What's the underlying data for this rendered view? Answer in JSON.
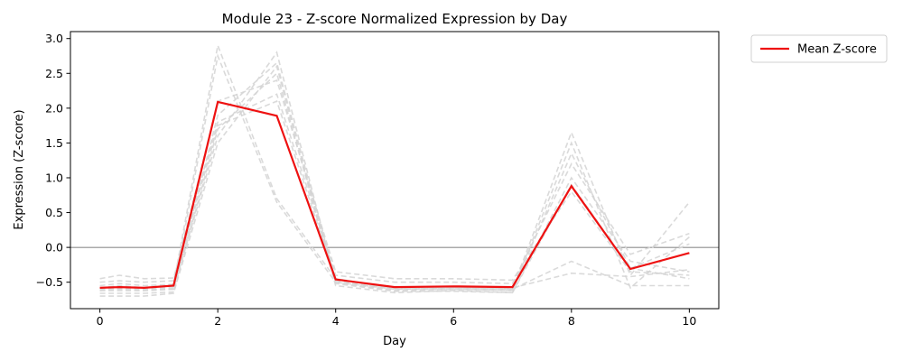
{
  "chart_data": {
    "type": "line",
    "title": "Module 23 - Z-score Normalized Expression by Day",
    "xlabel": "Day",
    "ylabel": "Expression (Z-score)",
    "xlim": [
      -0.5,
      10.5
    ],
    "ylim": [
      -0.88,
      3.1
    ],
    "xticks": [
      0,
      2,
      4,
      6,
      8,
      10
    ],
    "yticks": [
      -0.5,
      0.0,
      0.5,
      1.0,
      1.5,
      2.0,
      2.5,
      3.0
    ],
    "ytick_labels": [
      "−0.5",
      "0.0",
      "0.5",
      "1.0",
      "1.5",
      "2.0",
      "2.5",
      "3.0"
    ],
    "reference_line_y": 0,
    "grid": false,
    "legend_position": "outside-top-right",
    "colors": {
      "mean": "#ee1111",
      "individual": "#d3d3d3",
      "refline": "#555555"
    },
    "individual_series": [
      {
        "x": [
          0,
          0.33,
          0.75,
          1.25,
          2,
          3,
          4,
          5,
          6,
          7,
          8,
          9,
          10
        ],
        "y": [
          -0.55,
          -0.52,
          -0.55,
          -0.53,
          2.9,
          0.7,
          -0.45,
          -0.6,
          -0.58,
          -0.6,
          1.65,
          -0.4,
          0.65
        ]
      },
      {
        "x": [
          0,
          0.33,
          0.75,
          1.25,
          2,
          3,
          4,
          5,
          6,
          7,
          8,
          9,
          10
        ],
        "y": [
          -0.6,
          -0.58,
          -0.6,
          -0.58,
          2.75,
          0.65,
          -0.5,
          -0.62,
          -0.6,
          -0.62,
          1.5,
          -0.58,
          0.15
        ]
      },
      {
        "x": [
          0,
          0.33,
          0.75,
          1.25,
          2,
          3,
          4,
          5,
          6,
          7,
          8,
          9,
          10
        ],
        "y": [
          -0.45,
          -0.4,
          -0.45,
          -0.44,
          1.8,
          2.2,
          -0.4,
          -0.5,
          -0.5,
          -0.52,
          1.2,
          -0.1,
          0.2
        ]
      },
      {
        "x": [
          0,
          0.33,
          0.75,
          1.25,
          2,
          3,
          4,
          5,
          6,
          7,
          8,
          9,
          10
        ],
        "y": [
          -0.62,
          -0.62,
          -0.62,
          -0.6,
          1.6,
          2.8,
          -0.5,
          -0.6,
          -0.6,
          -0.62,
          1.35,
          -0.3,
          0.05
        ]
      },
      {
        "x": [
          0,
          0.33,
          0.75,
          1.25,
          2,
          3,
          4,
          5,
          6,
          7,
          8,
          9,
          10
        ],
        "y": [
          -0.7,
          -0.7,
          -0.7,
          -0.66,
          1.5,
          2.6,
          -0.55,
          -0.65,
          -0.62,
          -0.65,
          1.0,
          -0.2,
          -0.35
        ]
      },
      {
        "x": [
          0,
          0.33,
          0.75,
          1.25,
          2,
          3,
          4,
          5,
          6,
          7,
          8,
          9,
          10
        ],
        "y": [
          -0.66,
          -0.66,
          -0.66,
          -0.64,
          1.7,
          2.5,
          -0.52,
          -0.63,
          -0.63,
          -0.65,
          0.9,
          -0.3,
          -0.45
        ]
      },
      {
        "x": [
          0,
          0.33,
          0.75,
          1.25,
          2,
          3,
          4,
          5,
          6,
          7,
          8,
          9,
          10
        ],
        "y": [
          -0.5,
          -0.48,
          -0.5,
          -0.48,
          2.1,
          2.4,
          -0.35,
          -0.45,
          -0.45,
          -0.47,
          0.8,
          -0.35,
          -0.4
        ]
      },
      {
        "x": [
          0,
          0.33,
          0.75,
          1.25,
          2,
          3,
          4,
          5,
          6,
          7,
          8,
          9,
          10
        ],
        "y": [
          -0.62,
          -0.6,
          -0.62,
          -0.6,
          1.9,
          2.65,
          -0.48,
          -0.6,
          -0.58,
          -0.6,
          -0.2,
          -0.55,
          -0.55
        ]
      },
      {
        "x": [
          0,
          0.33,
          0.75,
          1.25,
          2,
          3,
          4,
          5,
          6,
          7,
          8,
          9,
          10
        ],
        "y": [
          -0.58,
          -0.55,
          -0.58,
          -0.56,
          1.75,
          2.1,
          -0.45,
          -0.58,
          -0.57,
          -0.58,
          -0.37,
          -0.42,
          -0.32
        ]
      }
    ],
    "series": [
      {
        "name": "Mean Z-score",
        "x": [
          0,
          0.33,
          0.75,
          1.25,
          2,
          3,
          4,
          5,
          6,
          7,
          8,
          9,
          10
        ],
        "y": [
          -0.58,
          -0.57,
          -0.58,
          -0.55,
          2.09,
          1.89,
          -0.46,
          -0.57,
          -0.56,
          -0.57,
          0.88,
          -0.31,
          -0.08
        ]
      }
    ]
  }
}
